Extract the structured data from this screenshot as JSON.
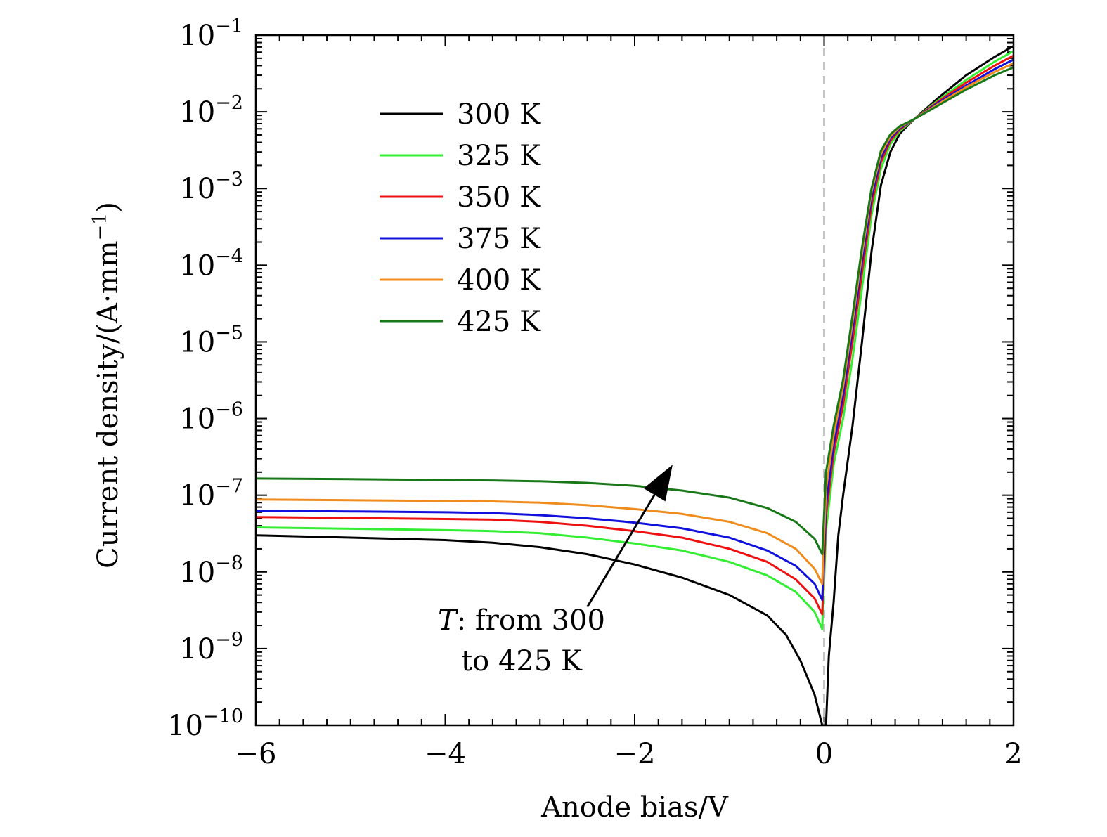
{
  "chart_data": {
    "type": "line",
    "xlabel": "Anode bias/V",
    "ylabel": "Current density/(A·mm",
    "ylabel_sup": "−1",
    "ylabel_close": ")",
    "xlim": [
      -6,
      2
    ],
    "ylim": [
      1e-10,
      0.1
    ],
    "yscale": "log",
    "x_ticks": [
      {
        "v": -6,
        "label": "−6"
      },
      {
        "v": -4,
        "label": "−4"
      },
      {
        "v": -2,
        "label": "−2"
      },
      {
        "v": 0,
        "label": "0"
      },
      {
        "v": 2,
        "label": "2"
      }
    ],
    "y_ticks": [
      {
        "exp": -1,
        "base": "10",
        "sup": "−1"
      },
      {
        "exp": -2,
        "base": "10",
        "sup": "−2"
      },
      {
        "exp": -3,
        "base": "10",
        "sup": "−3"
      },
      {
        "exp": -4,
        "base": "10",
        "sup": "−4"
      },
      {
        "exp": -5,
        "base": "10",
        "sup": "−5"
      },
      {
        "exp": -6,
        "base": "10",
        "sup": "−6"
      },
      {
        "exp": -7,
        "base": "10",
        "sup": "−7"
      },
      {
        "exp": -8,
        "base": "10",
        "sup": "−8"
      },
      {
        "exp": -9,
        "base": "10",
        "sup": "−9"
      },
      {
        "exp": -10,
        "base": "10",
        "sup": "−10"
      }
    ],
    "grid": false,
    "reference_line": {
      "x": 0,
      "style": "dashed",
      "color": "#b0b0b0"
    },
    "legend": {
      "placement": "upper-left",
      "entries": [
        {
          "label": "300 K",
          "color": "#000000"
        },
        {
          "label": "325 K",
          "color": "#33ee33"
        },
        {
          "label": "350 K",
          "color": "#ee1111"
        },
        {
          "label": "375 K",
          "color": "#1111dd"
        },
        {
          "label": "400 K",
          "color": "#f08c1e"
        },
        {
          "label": "425 K",
          "color": "#187818"
        }
      ]
    },
    "annotation": {
      "lines": [
        "T: from 300",
        "to 425 K"
      ],
      "italic_prefix": "T",
      "arrow_from": [
        -2.5,
        3.5e-09
      ],
      "arrow_to": [
        -1.6,
        2.5e-07
      ]
    },
    "series": [
      {
        "label_ref": 0,
        "color": "#000000",
        "points": [
          [
            -6,
            3e-08
          ],
          [
            -5,
            2.8e-08
          ],
          [
            -4,
            2.6e-08
          ],
          [
            -3.5,
            2.4e-08
          ],
          [
            -3,
            2.1e-08
          ],
          [
            -2.5,
            1.7e-08
          ],
          [
            -2,
            1.25e-08
          ],
          [
            -1.5,
            8.4e-09
          ],
          [
            -1,
            5e-09
          ],
          [
            -0.6,
            2.7e-09
          ],
          [
            -0.4,
            1.5e-09
          ],
          [
            -0.25,
            7e-10
          ],
          [
            -0.1,
            2.5e-10
          ],
          [
            -0.02,
            1e-10
          ],
          [
            0.02,
            1e-10
          ],
          [
            0.05,
            8e-10
          ],
          [
            0.1,
            4e-09
          ],
          [
            0.15,
            3e-08
          ],
          [
            0.2,
            1e-07
          ],
          [
            0.3,
            8e-07
          ],
          [
            0.4,
            1e-05
          ],
          [
            0.5,
            0.00015
          ],
          [
            0.6,
            0.0011
          ],
          [
            0.7,
            0.003
          ],
          [
            0.8,
            0.0052
          ],
          [
            0.95,
            0.008
          ],
          [
            1.2,
            0.015
          ],
          [
            1.5,
            0.03
          ],
          [
            1.8,
            0.052
          ],
          [
            2,
            0.072
          ]
        ]
      },
      {
        "label_ref": 1,
        "color": "#33ee33",
        "points": [
          [
            -6,
            3.8e-08
          ],
          [
            -5,
            3.65e-08
          ],
          [
            -4,
            3.5e-08
          ],
          [
            -3.5,
            3.4e-08
          ],
          [
            -3,
            3.2e-08
          ],
          [
            -2.5,
            2.8e-08
          ],
          [
            -2,
            2.35e-08
          ],
          [
            -1.5,
            1.9e-08
          ],
          [
            -1,
            1.35e-08
          ],
          [
            -0.6,
            9e-09
          ],
          [
            -0.3,
            5.5e-09
          ],
          [
            -0.1,
            3e-09
          ],
          [
            -0.02,
            1.8e-09
          ],
          [
            0.02,
            3.5e-08
          ],
          [
            0.1,
            2.5e-07
          ],
          [
            0.2,
            1e-06
          ],
          [
            0.3,
            6e-06
          ],
          [
            0.4,
            5e-05
          ],
          [
            0.5,
            0.00045
          ],
          [
            0.6,
            0.0018
          ],
          [
            0.7,
            0.0038
          ],
          [
            0.8,
            0.0056
          ],
          [
            0.95,
            0.008
          ],
          [
            1.2,
            0.014
          ],
          [
            1.5,
            0.026
          ],
          [
            1.8,
            0.045
          ],
          [
            2,
            0.062
          ]
        ]
      },
      {
        "label_ref": 2,
        "color": "#ee1111",
        "points": [
          [
            -6,
            5.2e-08
          ],
          [
            -5,
            5.05e-08
          ],
          [
            -4,
            4.9e-08
          ],
          [
            -3.5,
            4.8e-08
          ],
          [
            -3,
            4.5e-08
          ],
          [
            -2.5,
            4e-08
          ],
          [
            -2,
            3.4e-08
          ],
          [
            -1.5,
            2.8e-08
          ],
          [
            -1,
            2e-08
          ],
          [
            -0.6,
            1.35e-08
          ],
          [
            -0.3,
            8e-09
          ],
          [
            -0.1,
            4.5e-09
          ],
          [
            -0.02,
            2.8e-09
          ],
          [
            0.02,
            5.5e-08
          ],
          [
            0.1,
            3.5e-07
          ],
          [
            0.2,
            1.5e-06
          ],
          [
            0.3,
            1e-05
          ],
          [
            0.4,
            8e-05
          ],
          [
            0.5,
            0.0006
          ],
          [
            0.6,
            0.0022
          ],
          [
            0.7,
            0.0042
          ],
          [
            0.8,
            0.0059
          ],
          [
            0.95,
            0.008
          ],
          [
            1.2,
            0.0135
          ],
          [
            1.5,
            0.024
          ],
          [
            1.8,
            0.04
          ],
          [
            2,
            0.054
          ]
        ]
      },
      {
        "label_ref": 3,
        "color": "#1111dd",
        "points": [
          [
            -6,
            6.3e-08
          ],
          [
            -5,
            6.15e-08
          ],
          [
            -4,
            6e-08
          ],
          [
            -3.5,
            5.85e-08
          ],
          [
            -3,
            5.5e-08
          ],
          [
            -2.5,
            5e-08
          ],
          [
            -2,
            4.4e-08
          ],
          [
            -1.5,
            3.7e-08
          ],
          [
            -1,
            2.8e-08
          ],
          [
            -0.6,
            1.9e-08
          ],
          [
            -0.3,
            1.2e-08
          ],
          [
            -0.1,
            7e-09
          ],
          [
            -0.02,
            4.3e-09
          ],
          [
            0.02,
            7.5e-08
          ],
          [
            0.1,
            4.5e-07
          ],
          [
            0.2,
            2e-06
          ],
          [
            0.3,
            1.4e-05
          ],
          [
            0.4,
            0.00011
          ],
          [
            0.5,
            0.00075
          ],
          [
            0.6,
            0.0025
          ],
          [
            0.7,
            0.0045
          ],
          [
            0.8,
            0.0061
          ],
          [
            0.95,
            0.008
          ],
          [
            1.2,
            0.013
          ],
          [
            1.5,
            0.022
          ],
          [
            1.8,
            0.036
          ],
          [
            2,
            0.048
          ]
        ]
      },
      {
        "label_ref": 4,
        "color": "#f08c1e",
        "points": [
          [
            -6,
            8.8e-08
          ],
          [
            -5,
            8.6e-08
          ],
          [
            -4,
            8.4e-08
          ],
          [
            -3.5,
            8.3e-08
          ],
          [
            -3,
            8e-08
          ],
          [
            -2.5,
            7.4e-08
          ],
          [
            -2,
            6.6e-08
          ],
          [
            -1.5,
            5.7e-08
          ],
          [
            -1,
            4.5e-08
          ],
          [
            -0.6,
            3.2e-08
          ],
          [
            -0.3,
            2e-08
          ],
          [
            -0.1,
            1.1e-08
          ],
          [
            -0.02,
            7e-09
          ],
          [
            0.02,
            1.2e-07
          ],
          [
            0.1,
            6e-07
          ],
          [
            0.2,
            2.6e-06
          ],
          [
            0.3,
            1.8e-05
          ],
          [
            0.4,
            0.00014
          ],
          [
            0.5,
            0.0009
          ],
          [
            0.6,
            0.0028
          ],
          [
            0.7,
            0.0048
          ],
          [
            0.8,
            0.0063
          ],
          [
            0.95,
            0.008
          ],
          [
            1.2,
            0.0125
          ],
          [
            1.5,
            0.021
          ],
          [
            1.8,
            0.033
          ],
          [
            2,
            0.043
          ]
        ]
      },
      {
        "label_ref": 5,
        "color": "#187818",
        "points": [
          [
            -6,
            1.65e-07
          ],
          [
            -5,
            1.62e-07
          ],
          [
            -4,
            1.58e-07
          ],
          [
            -3.5,
            1.56e-07
          ],
          [
            -3,
            1.52e-07
          ],
          [
            -2.5,
            1.45e-07
          ],
          [
            -2,
            1.33e-07
          ],
          [
            -1.5,
            1.15e-07
          ],
          [
            -1,
            9.3e-08
          ],
          [
            -0.6,
            6.8e-08
          ],
          [
            -0.3,
            4.5e-08
          ],
          [
            -0.1,
            2.7e-08
          ],
          [
            -0.02,
            1.7e-08
          ],
          [
            0.02,
            2e-07
          ],
          [
            0.1,
            8e-07
          ],
          [
            0.2,
            3.2e-06
          ],
          [
            0.3,
            2.2e-05
          ],
          [
            0.4,
            0.00017
          ],
          [
            0.5,
            0.001
          ],
          [
            0.6,
            0.0031
          ],
          [
            0.7,
            0.0051
          ],
          [
            0.8,
            0.0065
          ],
          [
            0.95,
            0.008
          ],
          [
            1.2,
            0.012
          ],
          [
            1.5,
            0.0195
          ],
          [
            1.8,
            0.03
          ],
          [
            2,
            0.038
          ]
        ]
      }
    ]
  }
}
